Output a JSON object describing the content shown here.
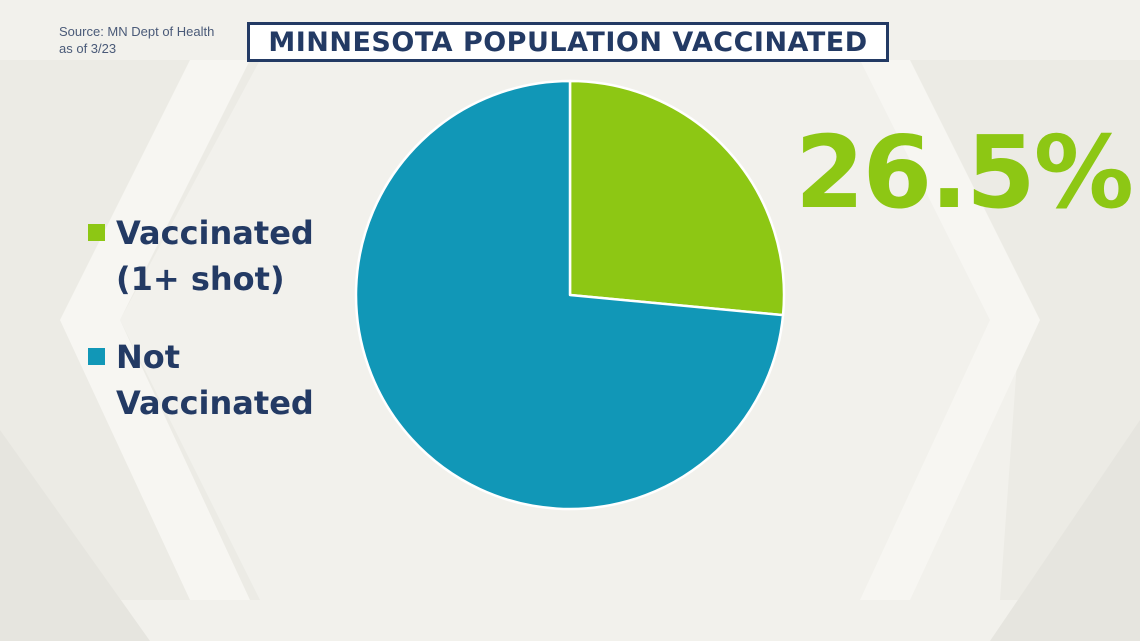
{
  "source": {
    "line1": "Source: MN Dept of Health",
    "line2": "as of 3/23"
  },
  "big_value": "26.5%",
  "colors": {
    "vaccinated": "#8dc714",
    "not_vaccinated": "#1197b7",
    "title": "#233a64",
    "background": "#f2f1ec"
  },
  "chart_data": {
    "type": "pie",
    "title": "MINNESOTA POPULATION VACCINATED",
    "labels": [
      "Vaccinated (1+ shot)",
      "Not Vaccinated"
    ],
    "values": [
      26.5,
      73.5
    ],
    "unit": "%",
    "legend": "left",
    "slices": [
      {
        "label_line1": "Vaccinated",
        "label_line2": "(1+ shot)",
        "value": 26.5,
        "color": "#8dc714"
      },
      {
        "label_line1": "Not",
        "label_line2": "Vaccinated",
        "value": 73.5,
        "color": "#1197b7"
      }
    ]
  }
}
